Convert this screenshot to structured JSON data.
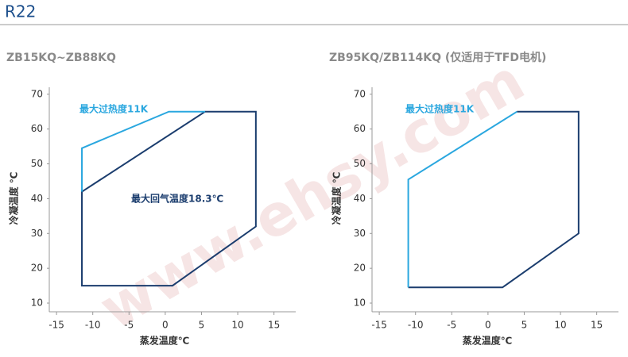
{
  "header": "R22",
  "watermark": "www.ehsy.com",
  "chart_data": [
    {
      "type": "line",
      "title": "ZB15KQ~ZB88KQ",
      "xlabel": "蒸发温度℃",
      "ylabel": "冷凝温度 ℃",
      "xlim": [
        -16,
        18
      ],
      "ylim": [
        7.5,
        72
      ],
      "xticks": [
        -15,
        -10,
        -5,
        0,
        5,
        10,
        15
      ],
      "yticks": [
        10,
        20,
        30,
        40,
        50,
        60,
        70
      ],
      "series": [
        {
          "color": "#1b3d6e",
          "closed": true,
          "x": [
            -11.5,
            1,
            12.5,
            12.5,
            5.5,
            -11.5
          ],
          "values": [
            15,
            15,
            32,
            65,
            65,
            42
          ]
        },
        {
          "color": "#2aa7df",
          "closed": false,
          "x": [
            -11.5,
            -11.5,
            0.5,
            5.5
          ],
          "values": [
            42,
            54.5,
            65,
            65
          ]
        }
      ],
      "annotations": [
        {
          "text": "最大过热度11K",
          "color": "#2aa7df"
        },
        {
          "text": "最大回气温度18.3℃",
          "color": "#1b3d6e"
        }
      ]
    },
    {
      "type": "line",
      "title": "ZB95KQ/ZB114KQ (仅适用于TFD电机)",
      "xlabel": "蒸发温度℃",
      "ylabel": "冷凝温度 ℃",
      "xlim": [
        -16,
        18
      ],
      "ylim": [
        7.5,
        72
      ],
      "xticks": [
        -15,
        -10,
        -5,
        0,
        5,
        10,
        15
      ],
      "yticks": [
        10,
        20,
        30,
        40,
        50,
        60,
        70
      ],
      "series": [
        {
          "color": "#1b3d6e",
          "closed": false,
          "x": [
            -11,
            2,
            12.5,
            12.5,
            4
          ],
          "values": [
            14.5,
            14.5,
            30,
            65,
            65
          ]
        },
        {
          "color": "#2aa7df",
          "closed": false,
          "x": [
            4,
            -11,
            -11
          ],
          "values": [
            65,
            45.5,
            14.5
          ]
        }
      ],
      "annotations": [
        {
          "text": "最大过热度11K",
          "color": "#2aa7df"
        }
      ]
    }
  ]
}
